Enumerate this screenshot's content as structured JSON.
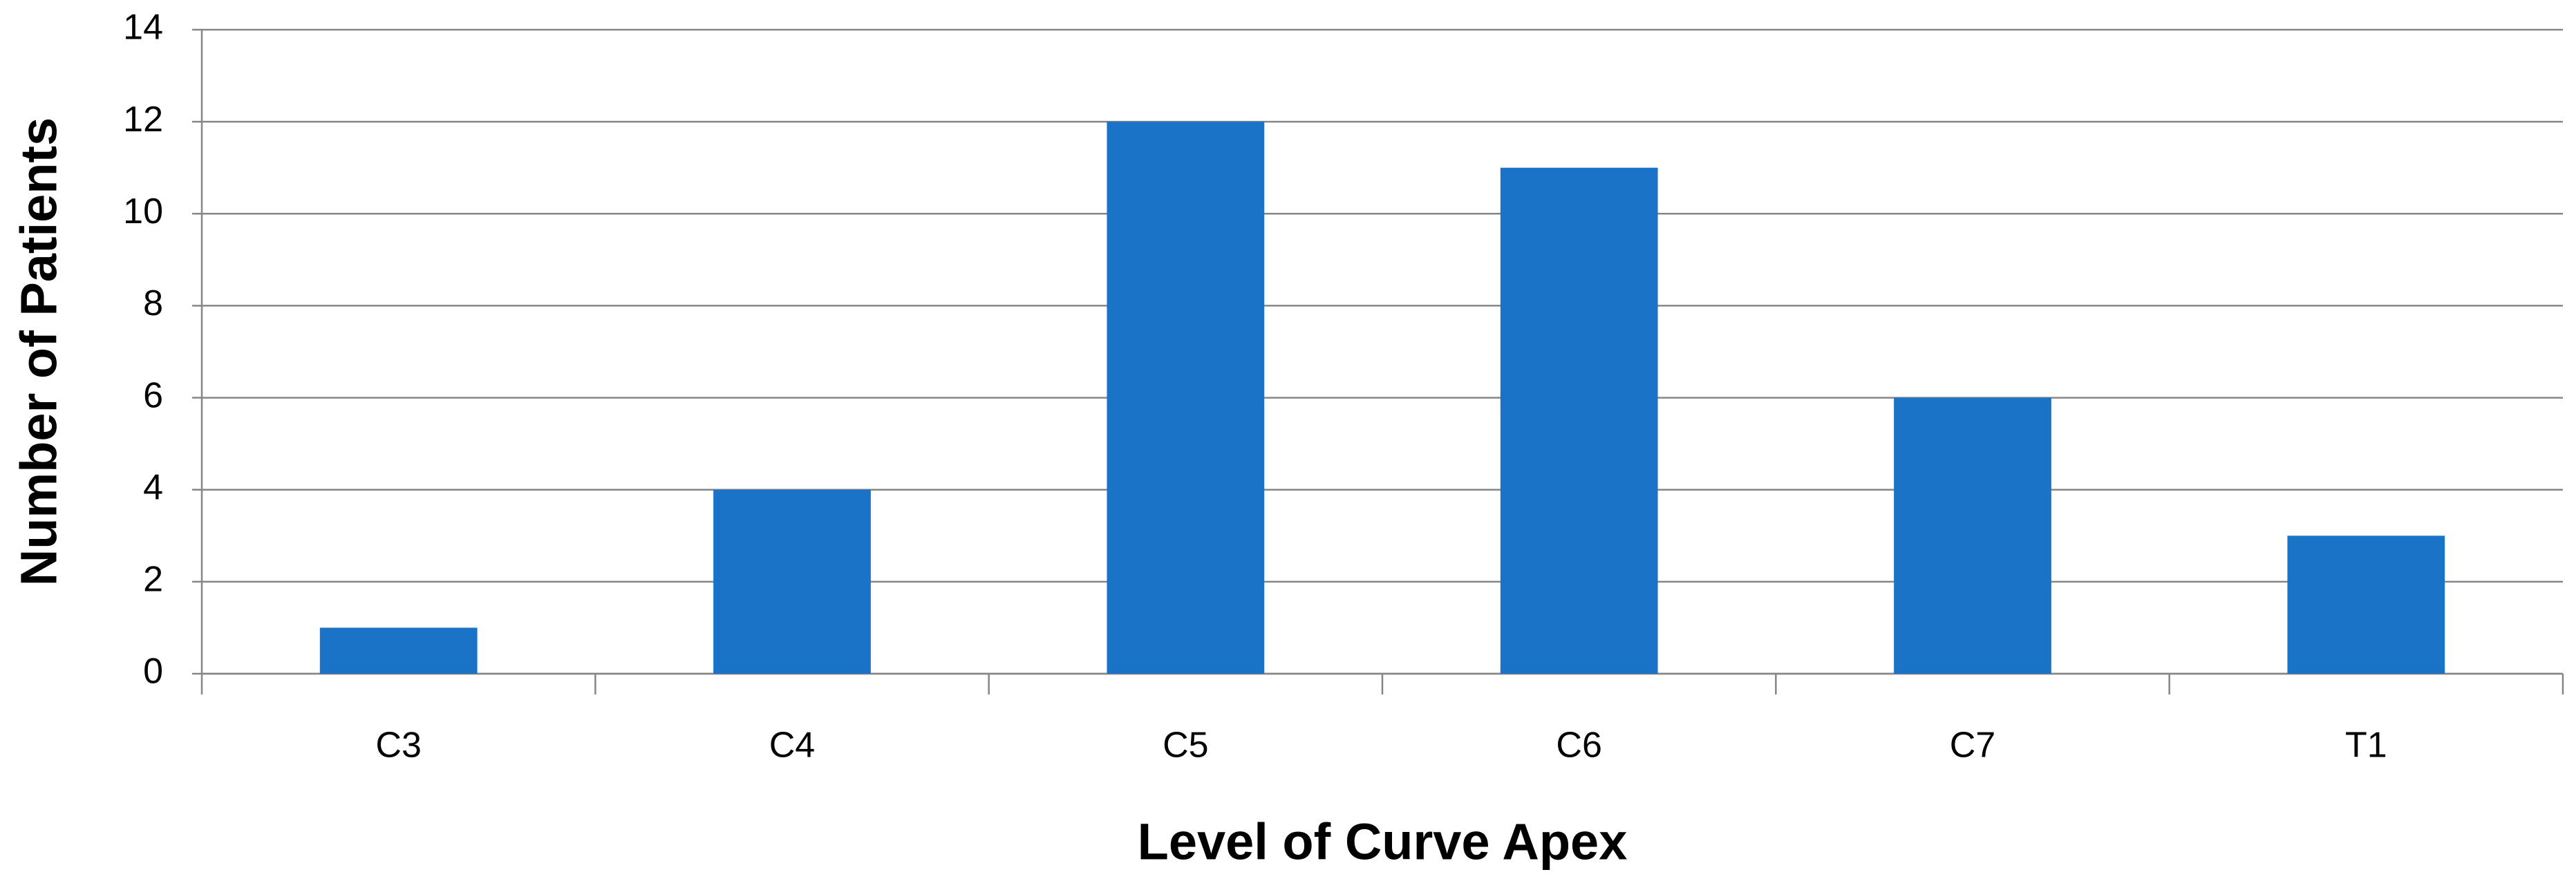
{
  "chart_data": {
    "type": "bar",
    "x_label": "Level of Curve Apex",
    "y_label": "Number of Patients",
    "categories": [
      "C3",
      "C4",
      "C5",
      "C6",
      "C7",
      "T1"
    ],
    "values": [
      1,
      4,
      12,
      11,
      6,
      3
    ],
    "color": "#1b73c8",
    "ylim": [
      0,
      14
    ],
    "yticks": [
      0,
      2,
      4,
      6,
      8,
      10,
      12,
      14
    ],
    "grid": true
  }
}
